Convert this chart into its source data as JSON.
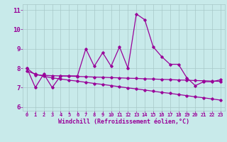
{
  "x": [
    0,
    1,
    2,
    3,
    4,
    5,
    6,
    7,
    8,
    9,
    10,
    11,
    12,
    13,
    14,
    15,
    16,
    17,
    18,
    19,
    20,
    21,
    22,
    23
  ],
  "windchill": [
    8.0,
    7.0,
    7.7,
    7.0,
    7.6,
    7.6,
    7.6,
    9.0,
    8.1,
    8.8,
    8.1,
    9.1,
    8.0,
    10.8,
    10.5,
    9.1,
    8.6,
    8.2,
    8.2,
    7.5,
    7.1,
    7.3,
    7.3,
    7.4
  ],
  "line2": [
    8.0,
    7.65,
    7.63,
    7.61,
    7.6,
    7.59,
    7.57,
    7.56,
    7.54,
    7.53,
    7.51,
    7.5,
    7.48,
    7.47,
    7.45,
    7.44,
    7.42,
    7.41,
    7.39,
    7.38,
    7.36,
    7.35,
    7.33,
    7.32
  ],
  "line3": [
    7.85,
    7.7,
    7.58,
    7.5,
    7.44,
    7.38,
    7.33,
    7.27,
    7.21,
    7.16,
    7.1,
    7.04,
    6.98,
    6.93,
    6.87,
    6.81,
    6.75,
    6.7,
    6.64,
    6.58,
    6.52,
    6.47,
    6.41,
    6.35
  ],
  "ylim": [
    5.8,
    11.3
  ],
  "xlim": [
    -0.5,
    23.5
  ],
  "yticks": [
    6,
    7,
    8,
    9,
    10,
    11
  ],
  "xticks": [
    0,
    1,
    2,
    3,
    4,
    5,
    6,
    7,
    8,
    9,
    10,
    11,
    12,
    13,
    14,
    15,
    16,
    17,
    18,
    19,
    20,
    21,
    22,
    23
  ],
  "xlabel": "Windchill (Refroidissement éolien,°C)",
  "bg_color": "#c8eaea",
  "grid_color": "#a8c8c8",
  "line_color": "#990099",
  "marker": "D",
  "marker_size": 1.8,
  "line_width": 0.9,
  "tick_label_color": "#990099",
  "xlabel_color": "#990099",
  "xlabel_fontsize": 6.0,
  "ytick_fontsize": 6.5,
  "xtick_fontsize": 5.0
}
